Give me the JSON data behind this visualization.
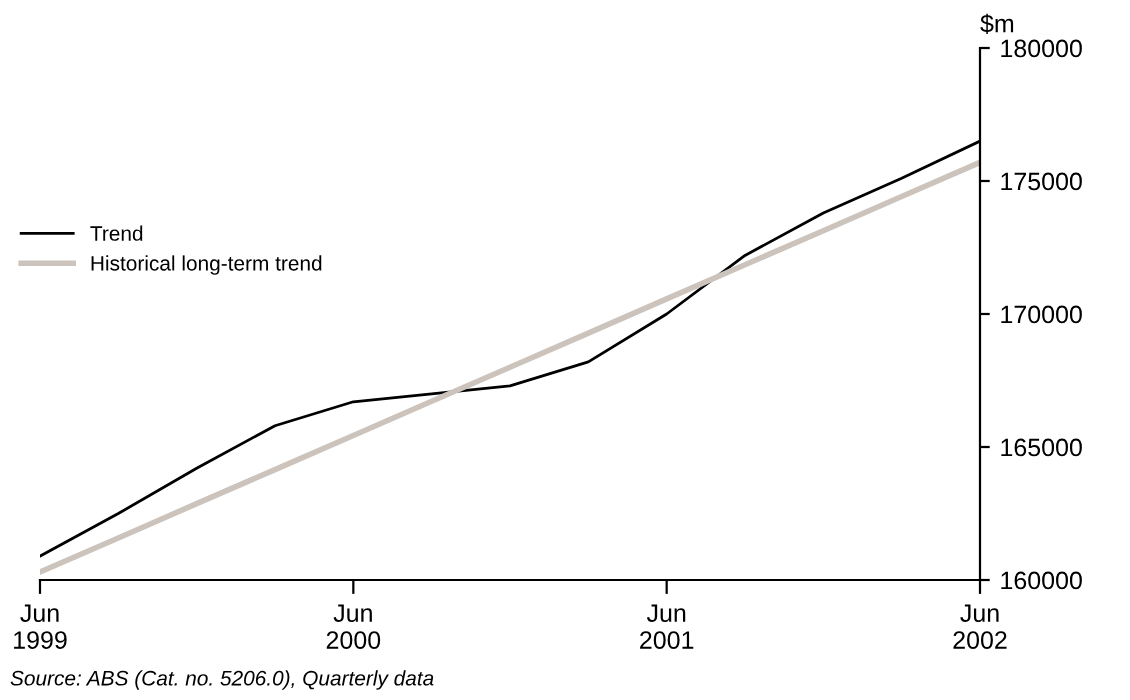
{
  "chart_data": {
    "type": "line",
    "ylabel": "$m",
    "categories": [
      "Jun\n1999",
      null,
      null,
      null,
      "Jun\n2000",
      null,
      null,
      null,
      "Jun\n2001",
      null,
      null,
      null,
      "Jun\n2002"
    ],
    "series": [
      {
        "name": "Trend",
        "color": "#000000",
        "values": [
          160900,
          162500,
          164200,
          165800,
          166700,
          167000,
          167300,
          168200,
          170000,
          172200,
          173800,
          175100,
          176500
        ]
      },
      {
        "name": "Historical long-term trend",
        "color": "#ccc4bc",
        "values": [
          160300,
          161580,
          162870,
          164150,
          165430,
          166720,
          168000,
          169280,
          170570,
          171850,
          173130,
          174420,
          175700
        ]
      }
    ],
    "ylim": [
      160000,
      180000
    ],
    "yticks": [
      160000,
      165000,
      170000,
      175000,
      180000
    ],
    "grid": false,
    "legend": "left",
    "annotations": [
      "Source: ABS (Cat. no. 5206.0), Quarterly data"
    ]
  }
}
